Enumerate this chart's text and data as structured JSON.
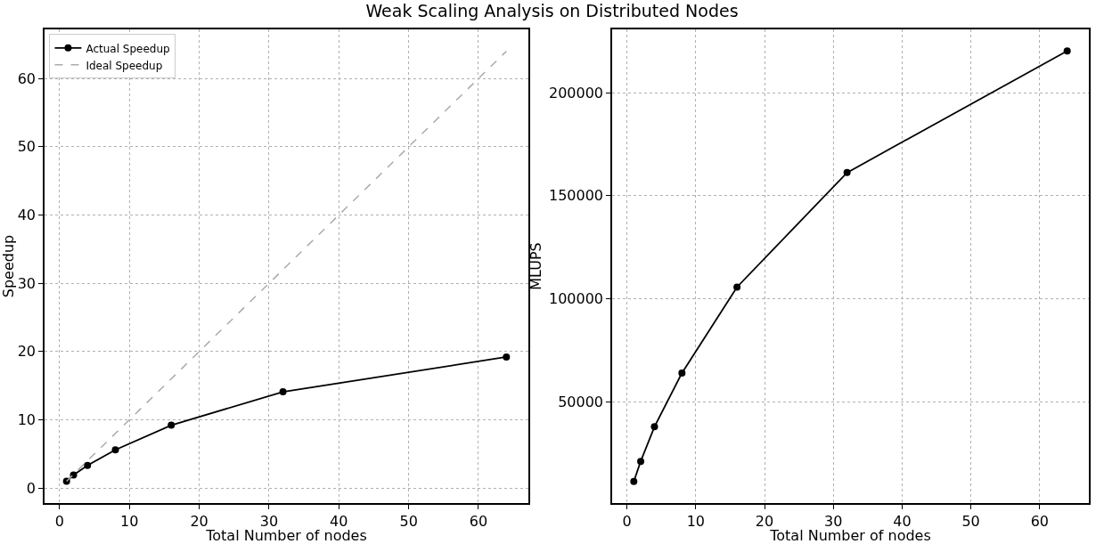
{
  "chart_data": [
    {
      "type": "line",
      "title": "Weak Scaling Analysis on Distributed Nodes",
      "xlabel": "Total Number of nodes",
      "ylabel": "Speedup",
      "x": [
        1,
        2,
        4,
        8,
        16,
        32,
        64
      ],
      "series": [
        {
          "name": "Actual Speedup",
          "color": "#000000",
          "values": [
            1.0,
            1.9,
            3.3,
            5.6,
            9.2,
            14.1,
            19.2
          ],
          "marker": "circle",
          "line_style": "solid"
        },
        {
          "name": "Ideal Speedup",
          "color": "#aaaaaa",
          "values": [
            1,
            2,
            4,
            8,
            16,
            32,
            64
          ],
          "marker": "none",
          "line_style": "dashed"
        }
      ],
      "xlim": [
        -2.15,
        67.15
      ],
      "xticks": [
        0,
        10,
        20,
        30,
        40,
        50,
        60
      ],
      "ylim": [
        -2.2,
        67.2
      ],
      "yticks": [
        0,
        10,
        20,
        30,
        40,
        50,
        60
      ],
      "grid": true,
      "legend": "top left"
    },
    {
      "type": "line",
      "xlabel": "Total Number of nodes",
      "ylabel": "MLUPS",
      "x": [
        1,
        2,
        4,
        8,
        16,
        32,
        64
      ],
      "series": [
        {
          "color": "#000000",
          "values": [
            11200,
            21000,
            37800,
            63900,
            105600,
            161200,
            220300
          ],
          "marker": "circle",
          "line_style": "solid"
        }
      ],
      "xlim": [
        -2.15,
        67.15
      ],
      "xticks": [
        0,
        10,
        20,
        30,
        40,
        50,
        60
      ],
      "ylim": [
        750,
        230750
      ],
      "yticks": [
        50000,
        100000,
        150000,
        200000
      ],
      "grid": true,
      "legend": false
    }
  ]
}
